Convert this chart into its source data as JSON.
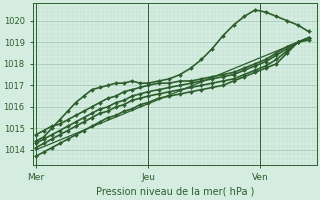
{
  "bg_color": "#d4ede0",
  "grid_color_major": "#a8ccb8",
  "grid_color_minor": "#c0dece",
  "line_color": "#2d5e2d",
  "text_color": "#2d5e2d",
  "ylabel_ticks": [
    1014,
    1015,
    1016,
    1017,
    1018,
    1019,
    1020
  ],
  "xlabel": "Pression niveau de la mer( hPa )",
  "xtick_labels": [
    "Mer",
    "Jeu",
    "Ven"
  ],
  "xtick_positions": [
    0.0,
    0.42,
    0.84
  ],
  "vline_positions": [
    0.0,
    0.42,
    0.84
  ],
  "ylim": [
    1013.3,
    1020.8
  ],
  "xlim": [
    -0.01,
    1.05
  ],
  "series": [
    {
      "x": [
        0.0,
        0.03,
        0.06,
        0.09,
        0.12,
        0.15,
        0.18,
        0.21,
        0.24,
        0.27,
        0.3,
        0.33,
        0.36,
        0.39,
        0.42,
        0.46,
        0.5,
        0.54,
        0.58,
        0.62,
        0.66,
        0.7,
        0.74,
        0.78,
        0.82,
        0.86,
        0.9,
        0.94,
        0.98,
        1.02
      ],
      "y": [
        1013.7,
        1013.9,
        1014.1,
        1014.3,
        1014.5,
        1014.7,
        1014.9,
        1015.1,
        1015.3,
        1015.5,
        1015.6,
        1015.8,
        1015.9,
        1016.1,
        1016.2,
        1016.4,
        1016.5,
        1016.6,
        1016.7,
        1016.8,
        1016.9,
        1017.0,
        1017.2,
        1017.4,
        1017.6,
        1017.8,
        1018.0,
        1018.5,
        1019.0,
        1019.2
      ],
      "marker": "D",
      "lw": 1.2
    },
    {
      "x": [
        0.0,
        0.03,
        0.06,
        0.09,
        0.12,
        0.15,
        0.18,
        0.21,
        0.24,
        0.27,
        0.3,
        0.33,
        0.36,
        0.39,
        0.42,
        0.46,
        0.5,
        0.54,
        0.58,
        0.62,
        0.66,
        0.7,
        0.74,
        0.78,
        0.82,
        0.86,
        0.9,
        0.94,
        0.98,
        1.02
      ],
      "y": [
        1014.1,
        1014.3,
        1014.5,
        1014.7,
        1014.9,
        1015.1,
        1015.3,
        1015.5,
        1015.7,
        1015.8,
        1016.0,
        1016.1,
        1016.3,
        1016.4,
        1016.5,
        1016.6,
        1016.7,
        1016.8,
        1016.9,
        1017.0,
        1017.1,
        1017.2,
        1017.3,
        1017.5,
        1017.7,
        1017.9,
        1018.2,
        1018.6,
        1019.0,
        1019.2
      ],
      "marker": "D",
      "lw": 1.2
    },
    {
      "x": [
        0.0,
        0.03,
        0.06,
        0.09,
        0.12,
        0.15,
        0.18,
        0.21,
        0.24,
        0.27,
        0.3,
        0.33,
        0.36,
        0.39,
        0.42,
        0.46,
        0.5,
        0.54,
        0.58,
        0.62,
        0.66,
        0.7,
        0.74,
        0.78,
        0.82,
        0.86,
        0.9,
        0.94,
        0.98,
        1.02
      ],
      "y": [
        1014.3,
        1014.5,
        1014.7,
        1014.9,
        1015.1,
        1015.3,
        1015.5,
        1015.7,
        1015.9,
        1016.0,
        1016.2,
        1016.3,
        1016.5,
        1016.6,
        1016.7,
        1016.8,
        1016.9,
        1017.0,
        1017.1,
        1017.2,
        1017.3,
        1017.4,
        1017.5,
        1017.7,
        1017.9,
        1018.1,
        1018.4,
        1018.7,
        1019.0,
        1019.2
      ],
      "marker": "D",
      "lw": 1.2
    },
    {
      "x": [
        0.0,
        0.03,
        0.06,
        0.09,
        0.12,
        0.15,
        0.18,
        0.21,
        0.24,
        0.27,
        0.3,
        0.33,
        0.36,
        0.39,
        0.42,
        0.46,
        0.5,
        0.54,
        0.58,
        0.62,
        0.66,
        0.7,
        0.74,
        0.78,
        0.82,
        0.86,
        0.9,
        0.94,
        0.98,
        1.02
      ],
      "y": [
        1014.7,
        1014.9,
        1015.1,
        1015.2,
        1015.4,
        1015.6,
        1015.8,
        1016.0,
        1016.2,
        1016.4,
        1016.5,
        1016.7,
        1016.8,
        1016.9,
        1017.0,
        1017.1,
        1017.1,
        1017.2,
        1017.2,
        1017.3,
        1017.4,
        1017.5,
        1017.6,
        1017.8,
        1018.0,
        1018.2,
        1018.5,
        1018.8,
        1019.0,
        1019.1
      ],
      "marker": "D",
      "lw": 1.2
    },
    {
      "x": [
        0.0,
        0.03,
        0.06,
        0.09,
        0.12,
        0.15,
        0.18,
        0.21,
        0.24,
        0.27,
        0.3,
        0.33,
        0.36,
        0.39,
        0.42,
        0.46,
        0.5,
        0.54,
        0.58,
        0.62,
        0.66,
        0.7,
        0.74,
        0.78,
        0.82,
        0.86,
        0.9,
        0.94,
        0.98,
        1.02
      ],
      "y": [
        1014.4,
        1014.6,
        1015.0,
        1015.4,
        1015.8,
        1016.2,
        1016.5,
        1016.8,
        1016.9,
        1017.0,
        1017.1,
        1017.1,
        1017.2,
        1017.1,
        1017.1,
        1017.2,
        1017.3,
        1017.5,
        1017.8,
        1018.2,
        1018.7,
        1019.3,
        1019.8,
        1020.2,
        1020.5,
        1020.4,
        1020.2,
        1020.0,
        1019.8,
        1019.5
      ],
      "marker": "D",
      "lw": 1.2
    },
    {
      "x": [
        0.0,
        1.02
      ],
      "y": [
        1014.0,
        1019.2
      ],
      "marker": null,
      "lw": 0.9
    }
  ]
}
